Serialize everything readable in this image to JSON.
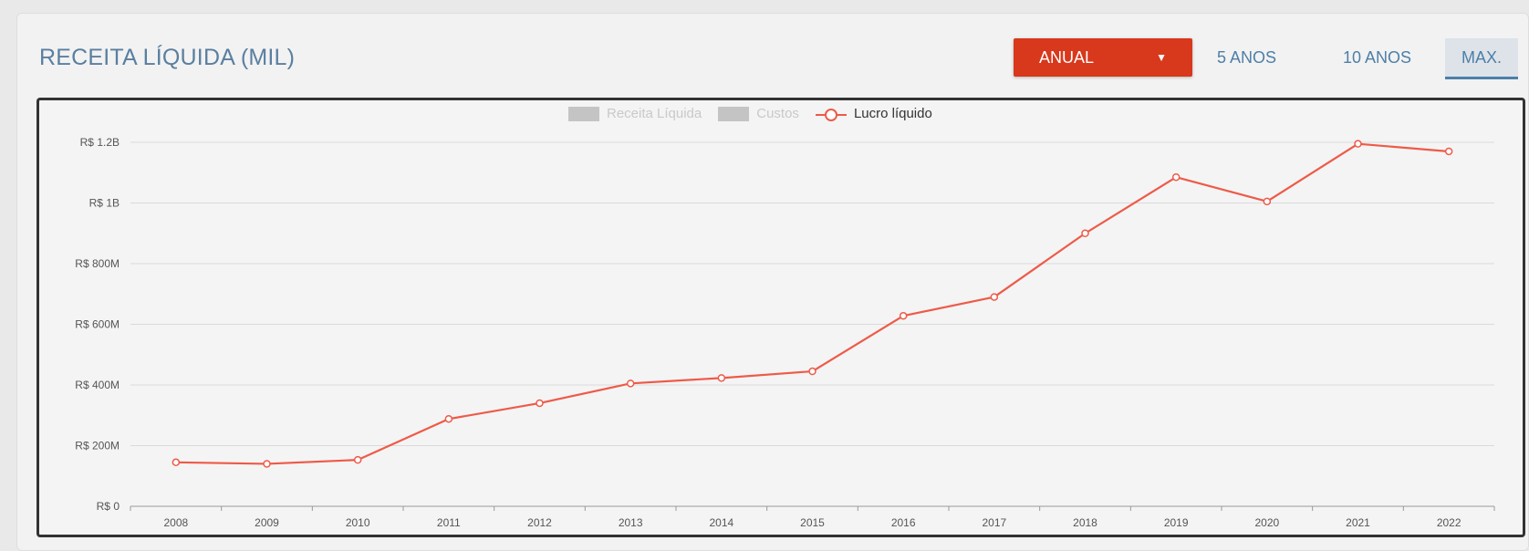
{
  "header": {
    "title": "RECEITA LÍQUIDA (MIL)",
    "period_select_label": "ANUAL",
    "ranges": [
      "5 ANOS",
      "10 ANOS",
      "MAX."
    ],
    "active_range": "MAX."
  },
  "colors": {
    "accent": "#d8381c",
    "line": "#ee5a48",
    "title": "#5a7fa0",
    "tab": "#4d7fa8"
  },
  "legend": [
    {
      "name": "Receita Líquida",
      "enabled": false
    },
    {
      "name": "Custos",
      "enabled": false
    },
    {
      "name": "Lucro líquido",
      "enabled": true
    }
  ],
  "chart_data": {
    "type": "line",
    "title": "",
    "xlabel": "",
    "ylabel": "",
    "categories": [
      "2008",
      "2009",
      "2010",
      "2011",
      "2012",
      "2013",
      "2014",
      "2015",
      "2016",
      "2017",
      "2018",
      "2019",
      "2020",
      "2021",
      "2022"
    ],
    "series": [
      {
        "name": "Lucro líquido",
        "values": [
          145,
          140,
          153,
          288,
          340,
          405,
          423,
          445,
          628,
          690,
          900,
          1085,
          1005,
          1195,
          1170
        ]
      }
    ],
    "value_unit": "R$ millions",
    "ylim": [
      0,
      1200
    ],
    "yticks": [
      {
        "value": 0,
        "label": "R$ 0"
      },
      {
        "value": 200,
        "label": "R$ 200M"
      },
      {
        "value": 400,
        "label": "R$ 400M"
      },
      {
        "value": 600,
        "label": "R$ 600M"
      },
      {
        "value": 800,
        "label": "R$ 800M"
      },
      {
        "value": 1000,
        "label": "R$ 1B"
      },
      {
        "value": 1200,
        "label": "R$ 1.2B"
      }
    ],
    "grid": true,
    "legend_position": "top"
  }
}
